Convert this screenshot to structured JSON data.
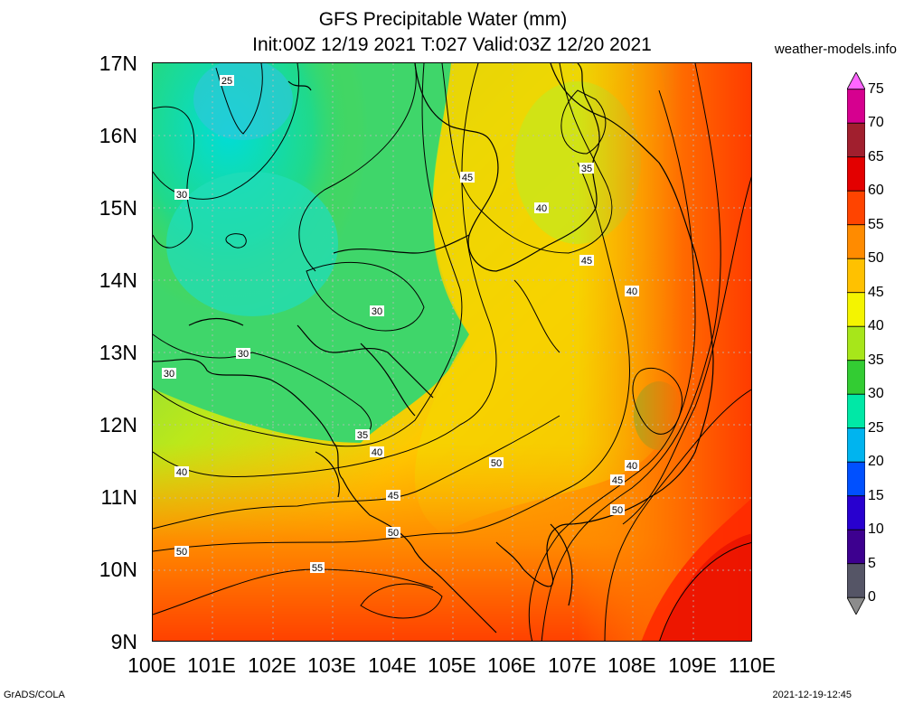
{
  "title_line1": "GFS Precipitable Water (mm)",
  "title_line2": "Init:00Z 12/19 2021 T:027 Valid:03Z 12/20 2021",
  "site": "weather-models.info",
  "footer_left": "GrADS/COLA",
  "footer_right": "2021-12-19-12:45",
  "lat_ticks": [
    "17N",
    "16N",
    "15N",
    "14N",
    "13N",
    "12N",
    "11N",
    "10N",
    "9N"
  ],
  "lon_ticks": [
    "100E",
    "101E",
    "102E",
    "103E",
    "104E",
    "105E",
    "106E",
    "107E",
    "108E",
    "109E",
    "110E"
  ],
  "colorbar": {
    "levels": [
      "75",
      "70",
      "65",
      "60",
      "55",
      "50",
      "45",
      "40",
      "35",
      "30",
      "25",
      "20",
      "15",
      "10",
      "5",
      "0"
    ],
    "colors": [
      "#ff66ff",
      "#d6008f",
      "#a11f2e",
      "#e30000",
      "#ff4400",
      "#ff8b00",
      "#ffc100",
      "#f4f400",
      "#a7e61a",
      "#33cc33",
      "#00e8a6",
      "#00b4ef",
      "#0050ff",
      "#2800cf",
      "#3d008f",
      "#555566",
      "#8c8c8c"
    ]
  },
  "contour_labels": [
    "25",
    "30",
    "30",
    "30",
    "30",
    "35",
    "35",
    "35",
    "40",
    "40",
    "40",
    "40",
    "40",
    "45",
    "45",
    "45",
    "45",
    "50",
    "50",
    "50",
    "50",
    "55"
  ]
}
